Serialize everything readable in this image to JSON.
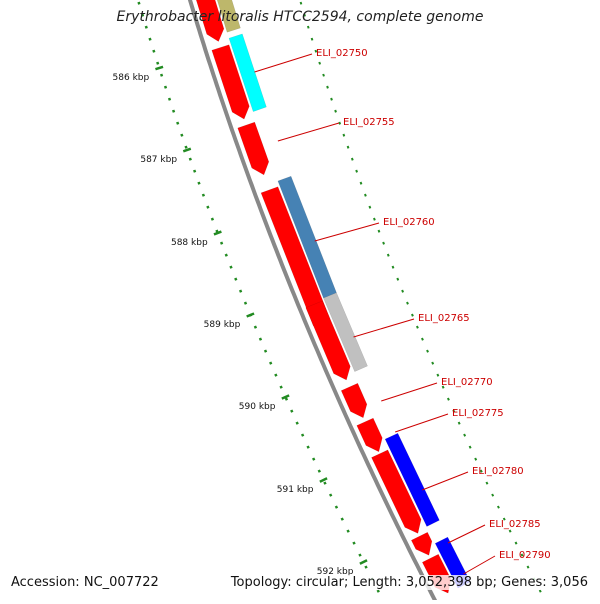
{
  "title": "Erythrobacter litoralis HTCC2594, complete genome",
  "footer": {
    "accession_label": "Accession:",
    "accession": "NC_007722",
    "topology_label": "Topology:",
    "topology": "circular",
    "length_label": "Length:",
    "length": "3,052,398 bp",
    "genes_label": "Genes:",
    "genes": "3,056"
  },
  "ruler": {
    "unit": "kbp",
    "ticks": [
      "586 kbp",
      "587 kbp",
      "588 kbp",
      "589 kbp",
      "590 kbp",
      "591 kbp",
      "592 kbp"
    ]
  },
  "genes": [
    {
      "label": "ELI_02750",
      "strand": "reverse",
      "color": "#ff0000"
    },
    {
      "label": "ELI_02755",
      "strand": "reverse",
      "color": "#ff0000"
    },
    {
      "label": "ELI_02760",
      "strand": "reverse",
      "color": "#ff0000"
    },
    {
      "label": "ELI_02765",
      "strand": "reverse",
      "color": "#ff0000"
    },
    {
      "label": "ELI_02770",
      "strand": "reverse",
      "color": "#ff0000"
    },
    {
      "label": "ELI_02775",
      "strand": "reverse",
      "color": "#ff0000"
    },
    {
      "label": "ELI_02780",
      "strand": "reverse",
      "color": "#ff0000"
    },
    {
      "label": "ELI_02785",
      "strand": "reverse",
      "color": "#ff0000"
    },
    {
      "label": "ELI_02790",
      "strand": "reverse",
      "color": "#ff0000"
    }
  ],
  "colors": {
    "backbone": "#888888",
    "cds": "#ff0000",
    "tick": "#228b22",
    "label": "#cc0000",
    "cog_tan": "#bdb76b",
    "cog_cyan": "#00ffff",
    "cog_steelblue": "#4682b4",
    "cog_gray": "#c0c0c0",
    "cog_blue": "#0000ff"
  }
}
